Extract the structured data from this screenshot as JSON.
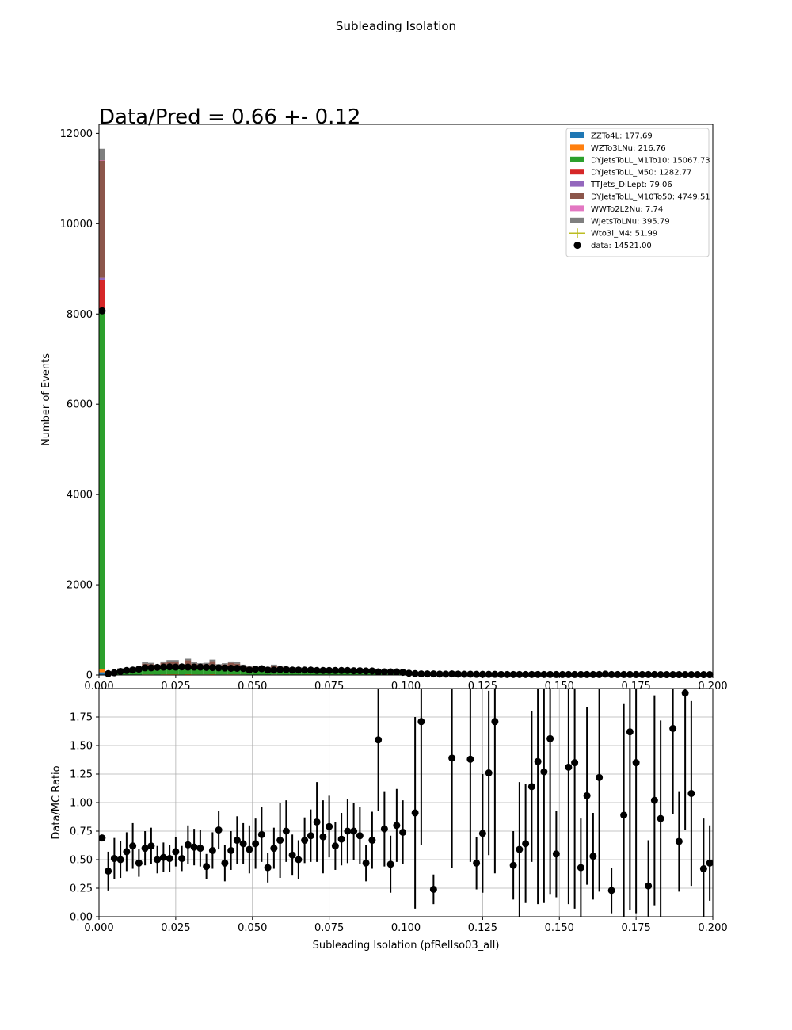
{
  "figure": {
    "suptitle": "Subleading Isolation",
    "annotation": "Data/Pred = 0.66 +- 0.12",
    "colors": {
      "ZZTo4L": "#1f77b4",
      "WZTo3LNu": "#ff7f0e",
      "DYJetsToLL_M1To10": "#2ca02c",
      "DYJetsToLL_M50": "#d62728",
      "TTJets_DiLept": "#9467bd",
      "DYJetsToLL_M10To50": "#8c564b",
      "WWTo2L2Nu": "#e377c2",
      "WJetsToLNu": "#7f7f7f",
      "Wto3l_M4": "#bcbd22",
      "data": "#000000"
    }
  },
  "chart_data": [
    {
      "type": "bar",
      "stacked": true,
      "xlabel": "",
      "ylabel": "Number of Events",
      "xlim": [
        0,
        0.2
      ],
      "ylim": [
        0,
        12200
      ],
      "xticks": [
        0.0,
        0.025,
        0.05,
        0.075,
        0.1,
        0.125,
        0.15,
        0.175,
        0.2
      ],
      "xticklabels": [
        "0.000",
        "0.025",
        "0.050",
        "0.075",
        "0.100",
        "0.125",
        "0.150",
        "0.175",
        "0.200"
      ],
      "yticks": [
        0,
        2000,
        4000,
        6000,
        8000,
        10000,
        12000
      ],
      "yticklabels": [
        "0",
        "2000",
        "4000",
        "6000",
        "8000",
        "10000",
        "12000"
      ],
      "grid": false,
      "legend_placement": "top-right",
      "legend": [
        {
          "label": "ZZTo4L: 177.69",
          "key": "ZZTo4L",
          "marker": "patch"
        },
        {
          "label": "WZTo3LNu: 216.76",
          "key": "WZTo3LNu",
          "marker": "patch"
        },
        {
          "label": "DYJetsToLL_M1To10: 15067.73",
          "key": "DYJetsToLL_M1To10",
          "marker": "patch"
        },
        {
          "label": "DYJetsToLL_M50: 1282.77",
          "key": "DYJetsToLL_M50",
          "marker": "patch"
        },
        {
          "label": "TTJets_DiLept: 79.06",
          "key": "TTJets_DiLept",
          "marker": "patch"
        },
        {
          "label": "DYJetsToLL_M10To50: 4749.51",
          "key": "DYJetsToLL_M10To50",
          "marker": "patch"
        },
        {
          "label": "WWTo2L2Nu: 7.74",
          "key": "WWTo2L2Nu",
          "marker": "patch"
        },
        {
          "label": "WJetsToLNu: 395.79",
          "key": "WJetsToLNu",
          "marker": "patch"
        },
        {
          "label": "Wto3l_M4: 51.99",
          "key": "Wto3l_M4",
          "marker": "errorline"
        },
        {
          "label": "data: 14521.00",
          "key": "data",
          "marker": "dot"
        }
      ],
      "bin_width": 0.002,
      "first_bin_stack": [
        {
          "key": "ZZTo4L",
          "value": 60
        },
        {
          "key": "WZTo3LNu",
          "value": 80
        },
        {
          "key": "DYJetsToLL_M1To10",
          "value": 7900
        },
        {
          "key": "DYJetsToLL_M50",
          "value": 720
        },
        {
          "key": "TTJets_DiLept",
          "value": 40
        },
        {
          "key": "DYJetsToLL_M10To50",
          "value": 2600
        },
        {
          "key": "WWTo2L2Nu",
          "value": 10
        },
        {
          "key": "WJetsToLNu",
          "value": 250
        }
      ],
      "mc_totals": [
        11660,
        80,
        100,
        150,
        160,
        170,
        180,
        280,
        270,
        220,
        300,
        330,
        330,
        240,
        360,
        280,
        260,
        270,
        340,
        240,
        260,
        300,
        280,
        230,
        200,
        170,
        190,
        180,
        230,
        200,
        180,
        170,
        170,
        160,
        150,
        140,
        140,
        150,
        140,
        140,
        130,
        130,
        130,
        120,
        120,
        110,
        100,
        90,
        90,
        80,
        70,
        60,
        50,
        40,
        38,
        35,
        32,
        30,
        28,
        26,
        24,
        22,
        20,
        19,
        18,
        17,
        16,
        15,
        14,
        13,
        12,
        11,
        10,
        10,
        9,
        9,
        8,
        8,
        7,
        7,
        7,
        6,
        6,
        6,
        5,
        5,
        5,
        5,
        4,
        4,
        4,
        4,
        4,
        4,
        3,
        3,
        3,
        3,
        3,
        3
      ],
      "data_x": [
        0.001,
        0.003,
        0.005,
        0.007,
        0.009,
        0.011,
        0.013,
        0.015,
        0.017,
        0.019,
        0.021,
        0.023,
        0.025,
        0.027,
        0.029,
        0.031,
        0.033,
        0.035,
        0.037,
        0.039,
        0.041,
        0.043,
        0.045,
        0.047,
        0.049,
        0.051,
        0.053,
        0.055,
        0.057,
        0.059,
        0.061,
        0.063,
        0.065,
        0.067,
        0.069,
        0.071,
        0.073,
        0.075,
        0.077,
        0.079,
        0.081,
        0.083,
        0.085,
        0.087,
        0.089,
        0.091,
        0.093,
        0.095,
        0.097,
        0.099,
        0.101,
        0.103,
        0.105,
        0.107,
        0.109,
        0.111,
        0.113,
        0.115,
        0.117,
        0.119,
        0.121,
        0.123,
        0.125,
        0.127,
        0.129,
        0.131,
        0.133,
        0.135,
        0.137,
        0.139,
        0.141,
        0.143,
        0.145,
        0.147,
        0.149,
        0.151,
        0.153,
        0.155,
        0.157,
        0.159,
        0.161,
        0.163,
        0.165,
        0.167,
        0.169,
        0.171,
        0.173,
        0.175,
        0.177,
        0.179,
        0.181,
        0.183,
        0.185,
        0.187,
        0.189,
        0.191,
        0.193,
        0.195,
        0.197,
        0.199
      ],
      "data_y": [
        8070,
        30,
        50,
        80,
        100,
        110,
        130,
        160,
        160,
        170,
        175,
        180,
        175,
        180,
        175,
        175,
        175,
        170,
        165,
        160,
        155,
        150,
        150,
        145,
        110,
        130,
        140,
        110,
        110,
        120,
        120,
        110,
        110,
        110,
        110,
        100,
        100,
        100,
        100,
        100,
        100,
        95,
        95,
        90,
        90,
        70,
        70,
        70,
        70,
        60,
        40,
        30,
        25,
        25,
        25,
        20,
        20,
        25,
        20,
        18,
        18,
        15,
        15,
        15,
        15,
        12,
        12,
        12,
        12,
        12,
        12,
        12,
        12,
        12,
        10,
        10,
        10,
        10,
        10,
        10,
        10,
        10,
        20,
        10,
        10,
        10,
        10,
        10,
        10,
        10,
        10,
        8,
        8,
        8,
        8,
        8,
        8,
        8,
        8,
        8
      ]
    },
    {
      "type": "scatter",
      "xlabel": "Subleading Isolation (pfRelIso03_all)",
      "ylabel": "Data/MC Ratio",
      "xlim": [
        0,
        0.2
      ],
      "ylim": [
        0,
        2.0
      ],
      "xticks": [
        0.0,
        0.025,
        0.05,
        0.075,
        0.1,
        0.125,
        0.15,
        0.175,
        0.2
      ],
      "xticklabels": [
        "0.000",
        "0.025",
        "0.050",
        "0.075",
        "0.100",
        "0.125",
        "0.150",
        "0.175",
        "0.200"
      ],
      "yticks": [
        0.0,
        0.25,
        0.5,
        0.75,
        1.0,
        1.25,
        1.5,
        1.75
      ],
      "yticklabels": [
        "0.00",
        "0.25",
        "0.50",
        "0.75",
        "1.00",
        "1.25",
        "1.50",
        "1.75"
      ],
      "grid": true,
      "points": [
        [
          0.001,
          0.69,
          0.01
        ],
        [
          0.003,
          0.4,
          0.17
        ],
        [
          0.005,
          0.51,
          0.18
        ],
        [
          0.007,
          0.5,
          0.16
        ],
        [
          0.009,
          0.57,
          0.17
        ],
        [
          0.011,
          0.62,
          0.2
        ],
        [
          0.013,
          0.47,
          0.12
        ],
        [
          0.015,
          0.6,
          0.15
        ],
        [
          0.017,
          0.62,
          0.16
        ],
        [
          0.019,
          0.5,
          0.12
        ],
        [
          0.021,
          0.52,
          0.13
        ],
        [
          0.023,
          0.51,
          0.12
        ],
        [
          0.025,
          0.57,
          0.13
        ],
        [
          0.027,
          0.51,
          0.11
        ],
        [
          0.029,
          0.63,
          0.17
        ],
        [
          0.031,
          0.61,
          0.16
        ],
        [
          0.033,
          0.6,
          0.16
        ],
        [
          0.035,
          0.44,
          0.11
        ],
        [
          0.037,
          0.58,
          0.16
        ],
        [
          0.039,
          0.76,
          0.17
        ],
        [
          0.041,
          0.47,
          0.16
        ],
        [
          0.043,
          0.58,
          0.17
        ],
        [
          0.045,
          0.67,
          0.21
        ],
        [
          0.047,
          0.64,
          0.18
        ],
        [
          0.049,
          0.59,
          0.21
        ],
        [
          0.051,
          0.64,
          0.22
        ],
        [
          0.053,
          0.72,
          0.24
        ],
        [
          0.055,
          0.43,
          0.13
        ],
        [
          0.057,
          0.6,
          0.18
        ],
        [
          0.059,
          0.67,
          0.33
        ],
        [
          0.061,
          0.75,
          0.27
        ],
        [
          0.063,
          0.54,
          0.18
        ],
        [
          0.065,
          0.5,
          0.17
        ],
        [
          0.067,
          0.67,
          0.2
        ],
        [
          0.069,
          0.71,
          0.23
        ],
        [
          0.071,
          0.83,
          0.35
        ],
        [
          0.073,
          0.7,
          0.32
        ],
        [
          0.075,
          0.79,
          0.27
        ],
        [
          0.077,
          0.62,
          0.21
        ],
        [
          0.079,
          0.68,
          0.23
        ],
        [
          0.081,
          0.75,
          0.28
        ],
        [
          0.083,
          0.75,
          0.25
        ],
        [
          0.085,
          0.71,
          0.25
        ],
        [
          0.087,
          0.47,
          0.16
        ],
        [
          0.089,
          0.67,
          0.25
        ],
        [
          0.091,
          1.55,
          0.62
        ],
        [
          0.093,
          0.77,
          0.33
        ],
        [
          0.095,
          0.46,
          0.25
        ],
        [
          0.097,
          0.8,
          0.32
        ],
        [
          0.099,
          0.74,
          0.28
        ],
        [
          0.103,
          0.91,
          0.84
        ],
        [
          0.105,
          1.71,
          1.08
        ],
        [
          0.109,
          0.24,
          0.13
        ],
        [
          0.115,
          1.39,
          0.96
        ],
        [
          0.121,
          1.38,
          0.9
        ],
        [
          0.123,
          0.47,
          0.23
        ],
        [
          0.125,
          0.73,
          0.52
        ],
        [
          0.127,
          1.26,
          0.72
        ],
        [
          0.129,
          1.71,
          1.33
        ],
        [
          0.135,
          0.45,
          0.3
        ],
        [
          0.137,
          0.59,
          0.59
        ],
        [
          0.139,
          0.64,
          0.52
        ],
        [
          0.141,
          1.14,
          0.66
        ],
        [
          0.143,
          1.36,
          1.25
        ],
        [
          0.145,
          1.27,
          1.15
        ],
        [
          0.147,
          1.56,
          1.36
        ],
        [
          0.149,
          0.55,
          0.38
        ],
        [
          0.153,
          1.31,
          1.2
        ],
        [
          0.155,
          1.35,
          1.28
        ],
        [
          0.157,
          0.43,
          0.43
        ],
        [
          0.159,
          1.06,
          0.78
        ],
        [
          0.161,
          0.53,
          0.38
        ],
        [
          0.163,
          1.22,
          1.0
        ],
        [
          0.167,
          0.23,
          0.2
        ],
        [
          0.171,
          0.89,
          0.98
        ],
        [
          0.173,
          1.62,
          1.56
        ],
        [
          0.175,
          1.35,
          1.32
        ],
        [
          0.179,
          0.27,
          0.4
        ],
        [
          0.181,
          1.02,
          0.92
        ],
        [
          0.183,
          0.86,
          0.86
        ],
        [
          0.187,
          1.65,
          0.75
        ],
        [
          0.189,
          0.66,
          0.44
        ],
        [
          0.191,
          1.96,
          1.2
        ],
        [
          0.193,
          1.08,
          0.81
        ],
        [
          0.197,
          0.42,
          0.44
        ],
        [
          0.199,
          0.47,
          0.33
        ]
      ]
    }
  ]
}
